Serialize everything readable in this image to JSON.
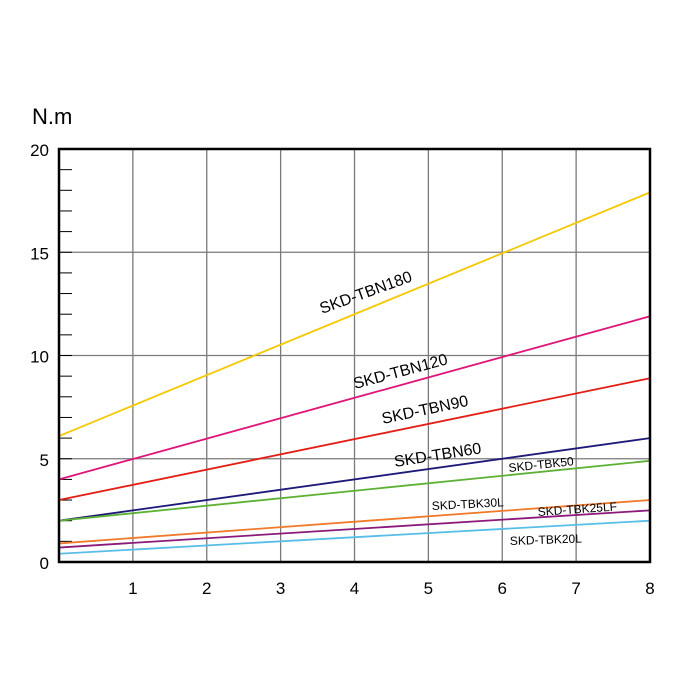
{
  "chart_data": {
    "type": "line",
    "title": "",
    "ylabel": "N.m",
    "xlabel": "",
    "xlim": [
      0,
      8
    ],
    "ylim": [
      0,
      20
    ],
    "x_ticks": [
      "1",
      "2",
      "3",
      "4",
      "5",
      "6",
      "7",
      "8"
    ],
    "y_ticks": [
      "0",
      "5",
      "10",
      "15",
      "20"
    ],
    "grid": true,
    "series": [
      {
        "name": "SKD-TBN180",
        "color": "#F5C800",
        "x": [
          0,
          8
        ],
        "y": [
          6.1,
          17.9
        ]
      },
      {
        "name": "SKD-TBN120",
        "color": "#E0157A",
        "x": [
          0,
          8
        ],
        "y": [
          4.0,
          11.9
        ]
      },
      {
        "name": "SKD-TBN90",
        "color": "#E31E14",
        "x": [
          0,
          8
        ],
        "y": [
          3.0,
          8.9
        ]
      },
      {
        "name": "SKD-TBN60",
        "color": "#1E1A7A",
        "x": [
          0,
          8
        ],
        "y": [
          2.0,
          6.0
        ]
      },
      {
        "name": "SKD-TBK50",
        "color": "#5DB135",
        "x": [
          0,
          8
        ],
        "y": [
          2.0,
          4.9
        ]
      },
      {
        "name": "SKD-TBK25LF",
        "color": "#F07A2A",
        "x": [
          0,
          8
        ],
        "y": [
          0.9,
          3.0
        ]
      },
      {
        "name": "SKD-TBK30L",
        "color": "#8B1A7A",
        "x": [
          0,
          8
        ],
        "y": [
          0.7,
          2.5
        ]
      },
      {
        "name": "SKD-TBK20L",
        "color": "#58BEE8",
        "x": [
          0,
          8
        ],
        "y": [
          0.4,
          2.0
        ]
      }
    ]
  }
}
